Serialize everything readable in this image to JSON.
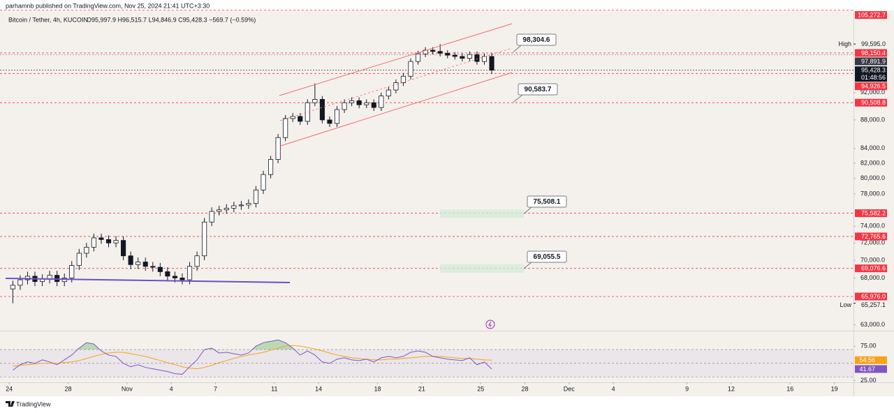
{
  "header": {
    "publisher": "parhamnb published on TradingView.com, Nov 25, 2024 21:41 UTC+3:30",
    "symbol": "Bitcoin / Tether, 4h, KUCOIN",
    "ohlc": "O95,997.9 H96,515.7 L94,846.9 C95,428.3 −569.7 (−0.59%)"
  },
  "chart_data": [
    {
      "type": "candlestick",
      "log_scale": true,
      "up_color": "#ffffff",
      "down_color": "#131722",
      "border_color": "#131722",
      "ylim": [
        62400,
        105200
      ],
      "yticks": [
        {
          "value": 92000,
          "label": "92,000.0"
        },
        {
          "value": 88000,
          "label": "88,000.0"
        },
        {
          "value": 84000,
          "label": "84,000.0"
        },
        {
          "value": 82000,
          "label": "82,000.0"
        },
        {
          "value": 80000,
          "label": "80,000.0"
        },
        {
          "value": 78000,
          "label": "78,000.0"
        },
        {
          "value": 74000,
          "label": "74,000.0"
        },
        {
          "value": 72000,
          "label": "72,000.0"
        },
        {
          "value": 70000,
          "label": "70,000.0"
        },
        {
          "value": 68000,
          "label": "68,000.0"
        },
        {
          "value": 63000,
          "label": "63,000.0"
        }
      ],
      "xlim": [
        -0.62,
        57.3
      ],
      "xticks": [
        {
          "value": 0,
          "label": "24"
        },
        {
          "value": 4,
          "label": "28"
        },
        {
          "value": 8,
          "label": "Nov"
        },
        {
          "value": 11,
          "label": "4"
        },
        {
          "value": 14,
          "label": "7"
        },
        {
          "value": 18,
          "label": "11"
        },
        {
          "value": 21,
          "label": "14"
        },
        {
          "value": 25,
          "label": "18"
        },
        {
          "value": 28,
          "label": "21"
        },
        {
          "value": 32,
          "label": "25"
        },
        {
          "value": 35,
          "label": "28"
        },
        {
          "value": 38,
          "label": "Dec"
        },
        {
          "value": 41,
          "label": "4"
        },
        {
          "value": 46,
          "label": "9"
        },
        {
          "value": 49,
          "label": "12"
        },
        {
          "value": 53,
          "label": "16"
        },
        {
          "value": 56,
          "label": "19"
        }
      ],
      "open": [
        66800,
        67200,
        67800,
        68200,
        67600,
        67900,
        68300,
        67600,
        68000,
        69400,
        70800,
        71500,
        72600,
        72400,
        72000,
        72300,
        70500,
        69500,
        69800,
        69300,
        69200,
        68700,
        68200,
        68000,
        67800,
        69300,
        70500,
        74500,
        75800,
        76000,
        76200,
        76500,
        76600,
        76800,
        78500,
        80500,
        82500,
        85500,
        88200,
        88500,
        87800,
        90500,
        91000,
        88000,
        87500,
        89500,
        90500,
        90800,
        90200,
        90500,
        89800,
        91500,
        92400,
        93500,
        94500,
        96800,
        98000,
        98600,
        98400,
        98100,
        97800,
        97600,
        97300,
        97900,
        96800,
        97600
      ],
      "high": [
        67700,
        68300,
        68700,
        68700,
        68400,
        68800,
        68800,
        68500,
        69900,
        71300,
        72000,
        73100,
        73100,
        72900,
        72800,
        72800,
        71000,
        70300,
        70300,
        69800,
        69700,
        69200,
        68700,
        68500,
        69800,
        71000,
        75000,
        76300,
        76500,
        76700,
        77000,
        77100,
        77300,
        79000,
        81000,
        83000,
        86000,
        88700,
        89000,
        89000,
        91000,
        93400,
        91500,
        88500,
        90000,
        91000,
        91300,
        91300,
        91000,
        91000,
        92000,
        92900,
        94000,
        95000,
        97300,
        98500,
        99100,
        99100,
        99595,
        98600,
        98300,
        98100,
        98400,
        98400,
        98100,
        98100
      ],
      "low": [
        65257.1,
        66700,
        67300,
        67100,
        67100,
        67400,
        67100,
        67100,
        67500,
        68900,
        70300,
        71000,
        71900,
        71500,
        71500,
        70000,
        69000,
        69000,
        68800,
        68700,
        68200,
        67700,
        67500,
        67300,
        67300,
        68800,
        70000,
        74000,
        75300,
        75500,
        75700,
        76000,
        76100,
        76300,
        78000,
        80000,
        82000,
        85000,
        87700,
        87300,
        87300,
        90000,
        87500,
        87000,
        87000,
        89000,
        90000,
        89700,
        89700,
        89300,
        89300,
        91000,
        91900,
        93000,
        94000,
        96300,
        97500,
        97900,
        97600,
        97300,
        97100,
        96800,
        96800,
        96300,
        96300,
        94846.9
      ],
      "close": [
        67200,
        67800,
        68200,
        67600,
        67900,
        68300,
        67600,
        68000,
        69400,
        70800,
        71500,
        72600,
        72400,
        72000,
        72300,
        70500,
        69500,
        69800,
        69300,
        69200,
        68700,
        68200,
        68000,
        67800,
        69300,
        70500,
        74500,
        75800,
        76000,
        76200,
        76500,
        76600,
        76800,
        78500,
        80500,
        82500,
        85500,
        88200,
        88500,
        87800,
        90500,
        91000,
        88000,
        87500,
        89500,
        90500,
        90800,
        90200,
        90500,
        89800,
        91500,
        92400,
        93500,
        94500,
        96800,
        98000,
        98600,
        98400,
        98100,
        97800,
        97600,
        97300,
        97900,
        96800,
        97600,
        95428.3
      ],
      "levels": [
        {
          "value": 105272.7,
          "label": "105,272.7"
        },
        {
          "value": 98150.4,
          "label": "98,150.4"
        },
        {
          "value": 94926.5,
          "label": "94,926.5"
        },
        {
          "value": 90508.8,
          "label": "90,508.8"
        },
        {
          "value": 75582.2,
          "label": "75,582.2"
        },
        {
          "value": 72765.6,
          "label": "72,765.6"
        },
        {
          "value": 69076.6,
          "label": "69,076.6"
        },
        {
          "value": 65976.0,
          "label": "65,976.0"
        }
      ],
      "level_color": "#f23645",
      "marker_price": {
        "value": 97891.9,
        "label": "97,891.9"
      },
      "last_price": {
        "value": 95428.3,
        "label": "95,428.3",
        "countdown": "01:48:56"
      },
      "high_mark": {
        "name": "High",
        "value": 99595,
        "label": "99,595.0"
      },
      "low_mark": {
        "name": "Low",
        "value": 65257.1,
        "label": "65,257.1"
      },
      "annotations": [
        {
          "value": 98304.6,
          "label": "98,304.6"
        },
        {
          "value": 90583.7,
          "label": "90,583.7"
        },
        {
          "value": 75508.1,
          "label": "75,508.1"
        },
        {
          "value": 69055.5,
          "label": "69,055.5"
        }
      ]
    },
    {
      "type": "line",
      "ylim": [
        22.4,
        96.4
      ],
      "yticks": [
        {
          "value": 75,
          "label": "75.00"
        },
        {
          "value": 25,
          "label": "25.00"
        }
      ],
      "bands": [
        70,
        50,
        30
      ],
      "series": [
        {
          "color": "#7e57c2",
          "last_label": "41.67",
          "values": [
            40,
            48,
            52,
            50,
            55,
            52,
            48,
            55,
            62,
            72,
            80,
            78,
            68,
            62,
            60,
            50,
            45,
            48,
            44,
            42,
            40,
            38,
            35,
            34,
            45,
            55,
            70,
            72,
            65,
            66,
            64,
            62,
            65,
            75,
            80,
            82,
            84,
            80,
            72,
            62,
            68,
            62,
            52,
            50,
            56,
            58,
            55,
            54,
            56,
            52,
            58,
            60,
            58,
            60,
            66,
            68,
            66,
            60,
            58,
            56,
            55,
            54,
            58,
            48,
            52,
            41.67
          ]
        },
        {
          "color": "#f7a21b",
          "last_label": "54.56",
          "values": [
            46,
            47,
            48,
            49,
            50,
            50,
            50,
            51,
            52,
            54,
            57,
            60,
            63,
            65,
            66,
            66,
            64,
            62,
            60,
            57,
            54,
            51,
            48,
            45,
            43,
            42,
            44,
            47,
            51,
            54,
            57,
            60,
            62,
            64,
            66,
            69,
            72,
            75,
            76,
            75,
            73,
            71,
            68,
            65,
            62,
            60,
            58,
            57,
            56,
            55,
            55,
            56,
            56,
            57,
            58,
            59,
            60,
            60,
            60,
            59,
            58,
            57,
            57,
            56,
            55,
            54.56
          ]
        }
      ]
    }
  ],
  "footer": {
    "brand": "TradingView"
  }
}
